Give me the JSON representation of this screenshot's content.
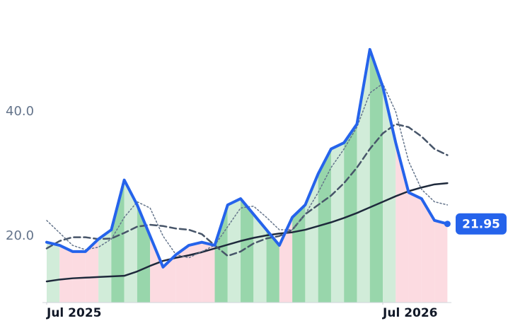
{
  "chart_data": {
    "type": "line",
    "categories": [
      "Jul 2025",
      null,
      null,
      null,
      null,
      null,
      null,
      null,
      null,
      null,
      null,
      null,
      null,
      null,
      null,
      null,
      null,
      null,
      null,
      null,
      null,
      null,
      null,
      null,
      null,
      null,
      "Jul 2026",
      null,
      null,
      null,
      null,
      null
    ],
    "series": [
      {
        "color": "#1e293b",
        "style": "solid",
        "values": [
          12.7,
          13.0,
          13.2,
          13.3,
          13.4,
          13.5,
          13.6,
          14.3,
          15.2,
          16.0,
          16.5,
          16.9,
          17.4,
          18.0,
          18.6,
          19.2,
          19.7,
          20.1,
          20.4,
          20.6,
          21.0,
          21.6,
          22.2,
          22.9,
          23.7,
          24.6,
          25.5,
          26.4,
          27.2,
          27.8,
          28.3,
          28.5
        ]
      },
      {
        "color": "#475569",
        "style": "dashed",
        "values": [
          18.0,
          19.2,
          19.8,
          19.8,
          19.5,
          19.6,
          20.5,
          21.5,
          21.8,
          21.6,
          21.2,
          21.0,
          20.3,
          18.5,
          16.8,
          17.5,
          18.8,
          19.6,
          20.0,
          21.0,
          23.5,
          25.0,
          26.5,
          28.5,
          31.0,
          34.0,
          36.5,
          38.0,
          37.5,
          36.0,
          34.0,
          33.0
        ]
      },
      {
        "color": "#64748b",
        "style": "dotted",
        "values": [
          22.5,
          20.5,
          18.5,
          17.8,
          18.2,
          19.5,
          23.0,
          25.5,
          24.5,
          20.0,
          17.0,
          16.5,
          17.5,
          18.5,
          21.5,
          24.5,
          24.8,
          23.0,
          21.0,
          21.0,
          23.5,
          27.0,
          31.0,
          34.0,
          37.5,
          43.0,
          44.5,
          40.0,
          32.0,
          27.5,
          25.5,
          25.0
        ]
      },
      {
        "color": "#2563eb",
        "style": "solid",
        "values": [
          19.0,
          18.5,
          17.5,
          17.5,
          19.5,
          21.0,
          29.0,
          25.0,
          20.0,
          15.0,
          17.0,
          18.5,
          19.0,
          18.5,
          25.0,
          26.0,
          23.5,
          21.0,
          18.5,
          23.0,
          25.0,
          30.0,
          34.0,
          35.0,
          38.0,
          50.0,
          44.0,
          35.0,
          27.0,
          26.0,
          22.5,
          21.95
        ],
        "value_labels": [
          null,
          null,
          null,
          null,
          null,
          null,
          null,
          null,
          null,
          null,
          null,
          null,
          null,
          null,
          null,
          null,
          null,
          null,
          null,
          null,
          null,
          null,
          null,
          null,
          null,
          null,
          null,
          null,
          null,
          null,
          null,
          "21.95"
        ]
      }
    ],
    "ylim": [
      9.3,
      53.4
    ],
    "yticks": [
      {
        "value": 20,
        "label": "20.0"
      },
      {
        "value": 40,
        "label": "40.0"
      }
    ],
    "grid": false
  }
}
